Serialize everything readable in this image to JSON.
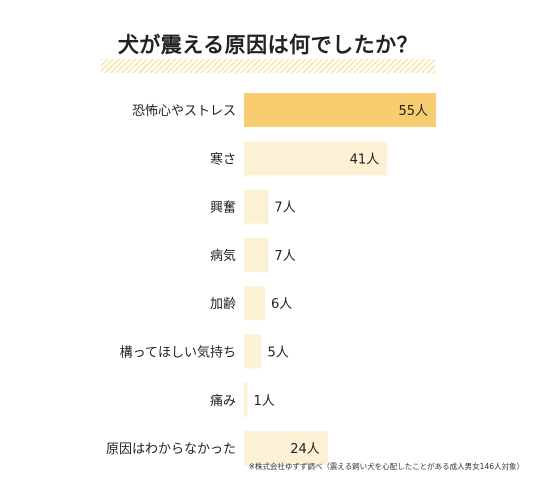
{
  "title": "犬が震える原因は何でしたか？",
  "note": "※株式会社ゆずず調べ（震える飼い犬を心配したことがある成人男女146人対象）",
  "colors": {
    "highlight_bar": "#f7cd70",
    "bar": "#fcf0d5",
    "text": "#222222"
  },
  "chart_data": {
    "type": "bar",
    "orientation": "horizontal",
    "title": "犬が震える原因は何でしたか？",
    "categories": [
      "恐怖心やストレス",
      "寒さ",
      "興奮",
      "病気",
      "加齢",
      "構ってほしい気持ち",
      "痛み",
      "原因はわからなかった"
    ],
    "values": [
      55,
      41,
      7,
      7,
      6,
      5,
      1,
      24
    ],
    "value_labels": [
      "55人",
      "41人",
      "7人",
      "7人",
      "6人",
      "5人",
      "1人",
      "24人"
    ],
    "highlight_index": 0,
    "xlim": [
      0,
      55
    ],
    "grid": false,
    "legend": "none"
  }
}
